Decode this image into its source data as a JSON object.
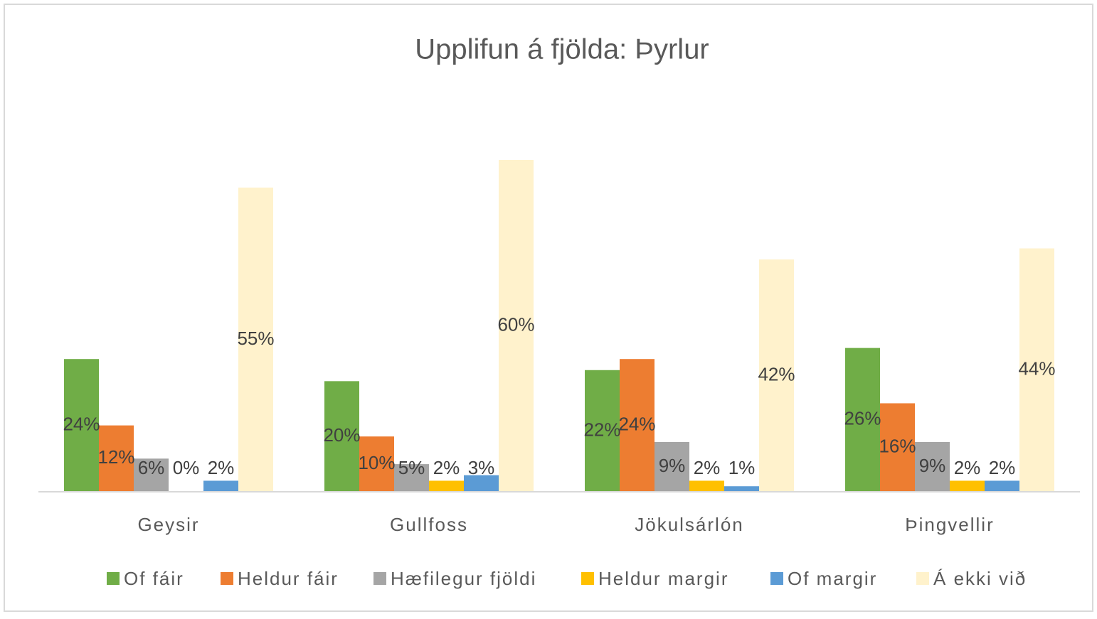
{
  "chart_data": {
    "type": "bar",
    "title": "Upplifun á fjölda: Þyrlur",
    "categories": [
      "Geysir",
      "Gullfoss",
      "Jökulsárlón",
      "Þingvellir"
    ],
    "series": [
      {
        "name": "Of fáir",
        "color": "#70ad47",
        "values": [
          24,
          20,
          22,
          26
        ],
        "value_labels": [
          "24%",
          "20%",
          "22%",
          "26%"
        ]
      },
      {
        "name": "Heldur fáir",
        "color": "#ed7d31",
        "values": [
          12,
          10,
          24,
          16
        ],
        "value_labels": [
          "12%",
          "10%",
          "24%",
          "16%"
        ]
      },
      {
        "name": "Hæfilegur fjöldi",
        "color": "#a5a5a5",
        "values": [
          6,
          5,
          9,
          9
        ],
        "value_labels": [
          "6%",
          "5%",
          "9%",
          "9%"
        ]
      },
      {
        "name": "Heldur margir",
        "color": "#ffc000",
        "values": [
          0,
          2,
          2,
          2
        ],
        "value_labels": [
          "0%",
          "2%",
          "2%",
          "2%"
        ]
      },
      {
        "name": "Of margir",
        "color": "#5b9bd5",
        "values": [
          2,
          3,
          1,
          2
        ],
        "value_labels": [
          "2%",
          "3%",
          "1%",
          "2%"
        ]
      },
      {
        "name": "Á ekki við",
        "color": "#fff2cc",
        "values": [
          55,
          60,
          42,
          44
        ],
        "value_labels": [
          "55%",
          "60%",
          "42%",
          "44%"
        ]
      }
    ],
    "legend": "bottom"
  }
}
